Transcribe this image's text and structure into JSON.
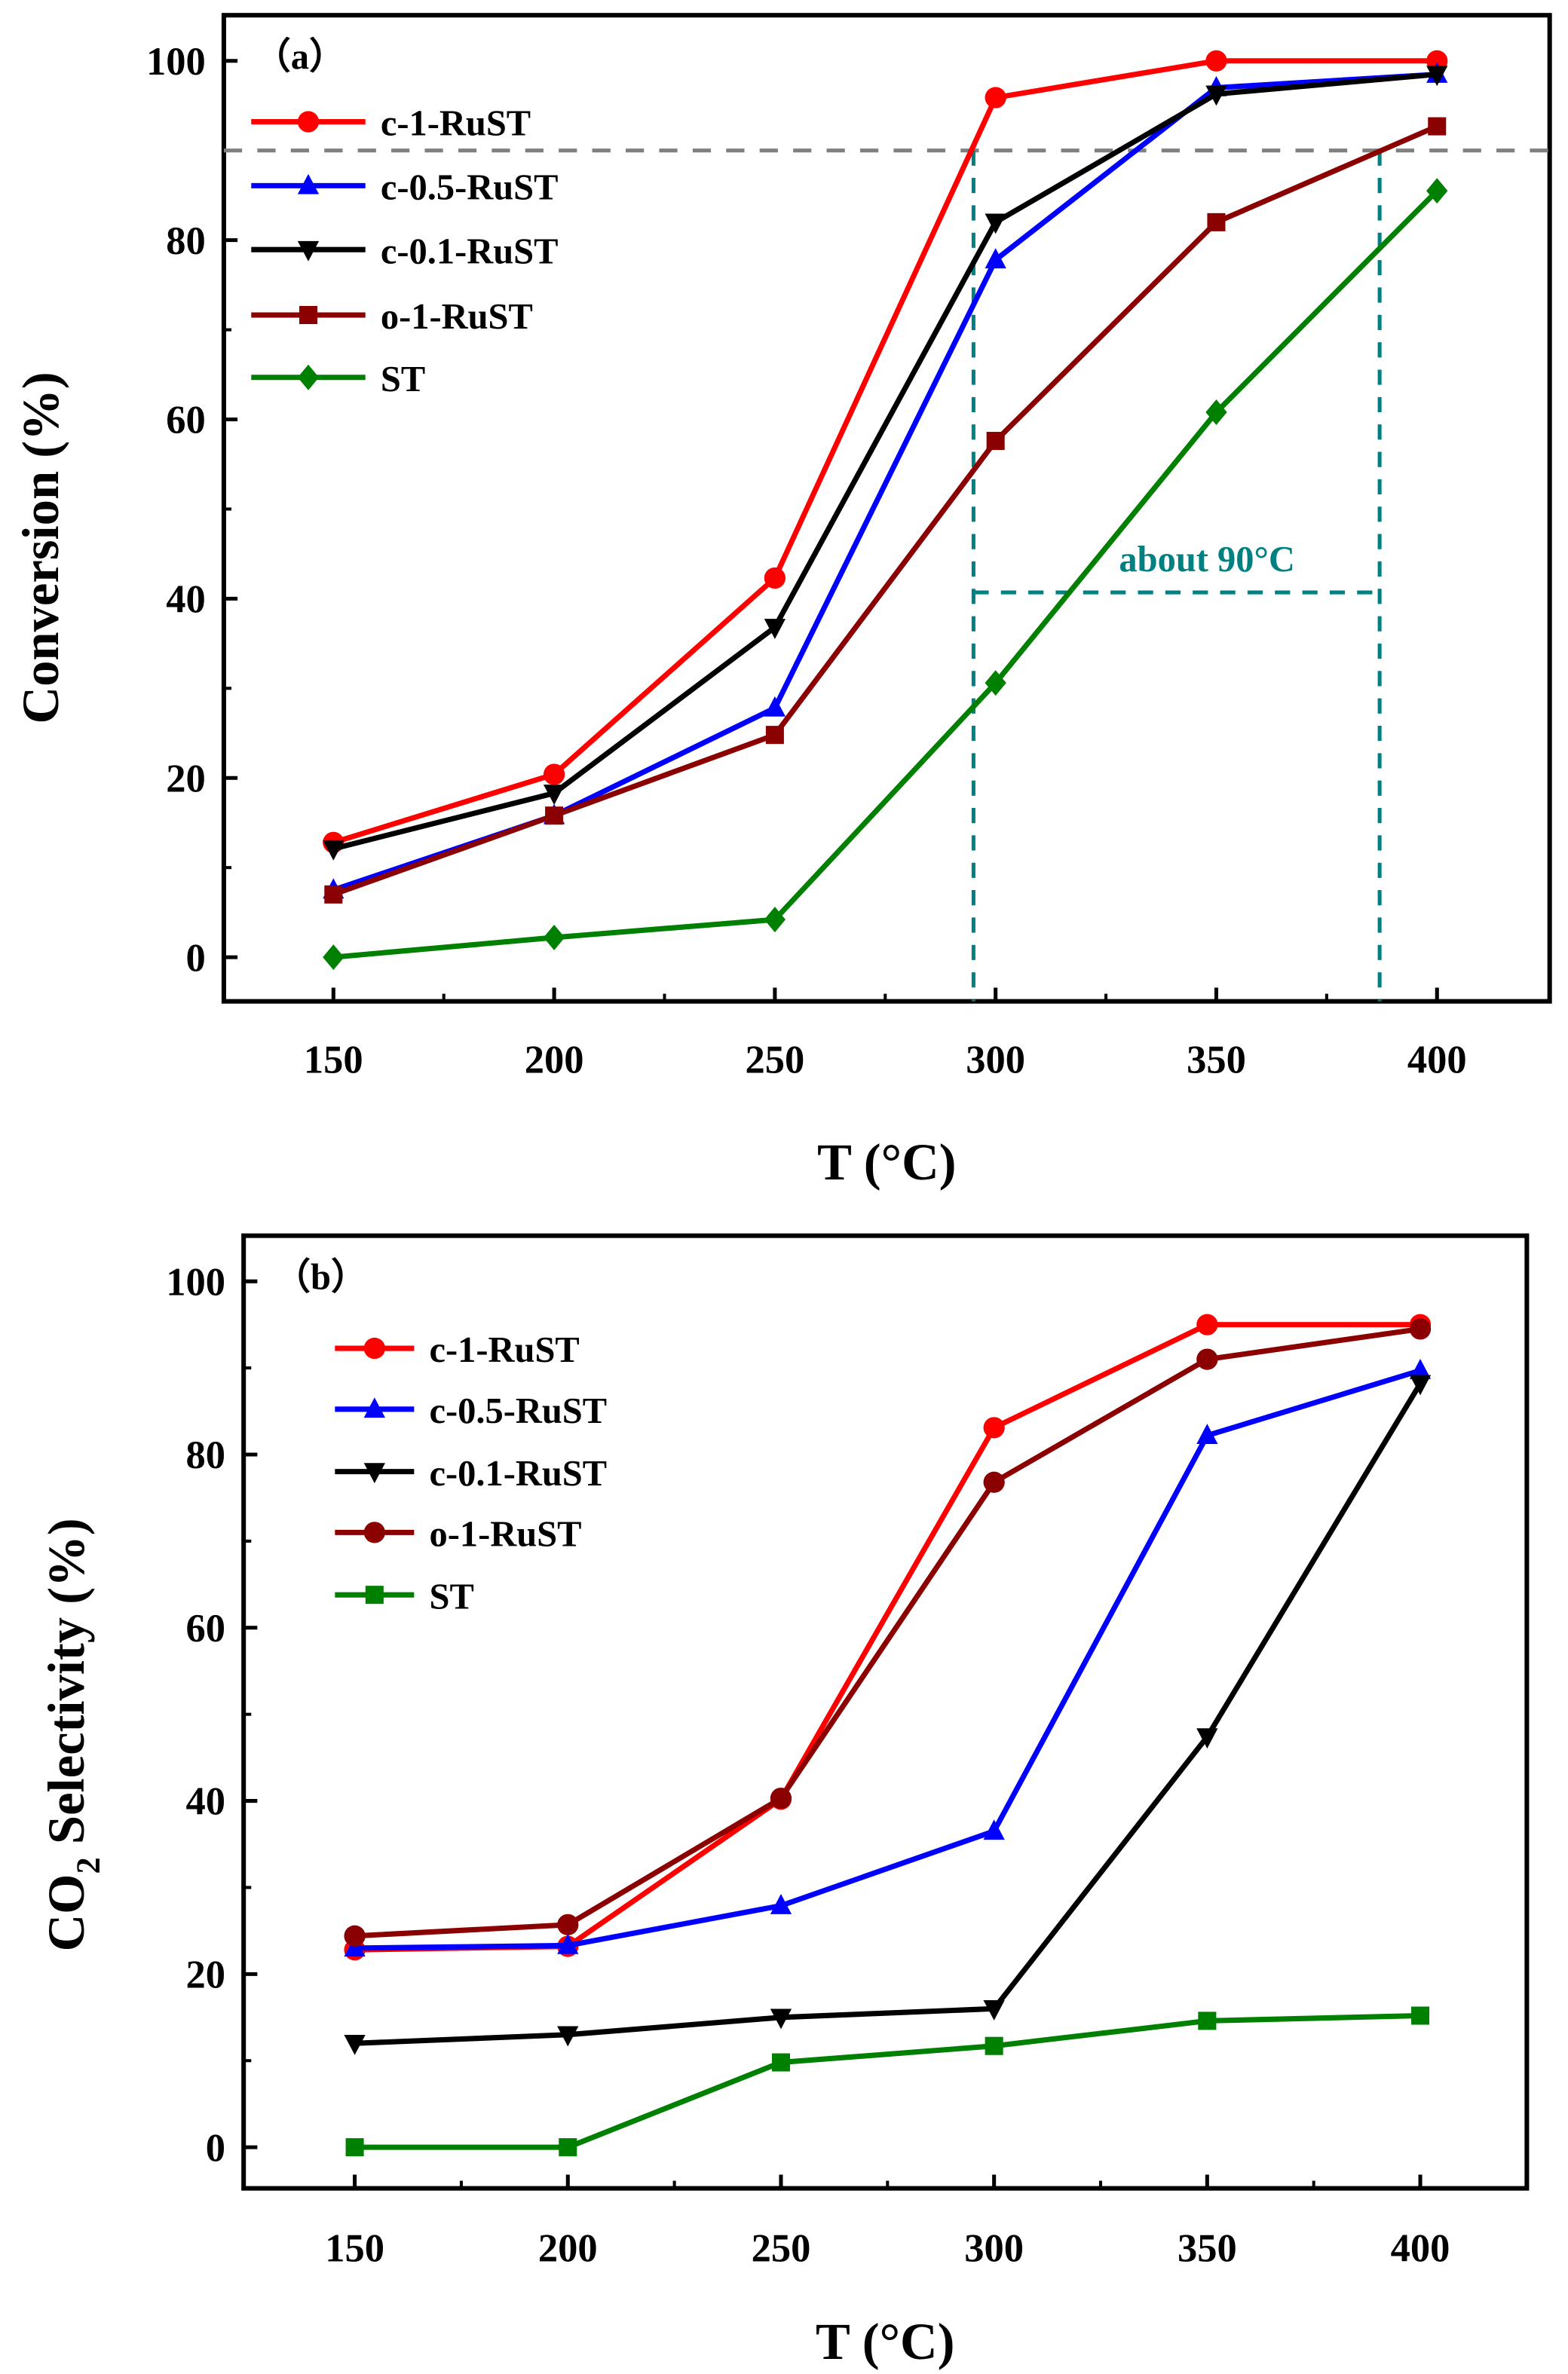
{
  "chart_data": [
    {
      "type": "line",
      "panel_label": "（a）",
      "xlabel": "T (°C)",
      "ylabel": "Conversion (%)",
      "xlim": [
        125,
        425
      ],
      "ylim": [
        -5,
        105
      ],
      "xticks": [
        150,
        200,
        250,
        300,
        350,
        400
      ],
      "yticks": [
        0,
        20,
        40,
        60,
        80,
        100
      ],
      "x": [
        150,
        200,
        250,
        300,
        350,
        400
      ],
      "legend_position": "top-left",
      "series": [
        {
          "name": "c-1-RuST",
          "color": "#ff0000",
          "marker": "circle",
          "values": [
            12.8,
            20.4,
            42.3,
            95.9,
            100,
            100
          ]
        },
        {
          "name": "c-0.5-RuST",
          "color": "#0000ff",
          "marker": "triangle-up",
          "values": [
            7.5,
            15.8,
            27.8,
            77.8,
            97,
            98.5
          ]
        },
        {
          "name": "c-0.1-RuST",
          "color": "#000000",
          "marker": "triangle-down",
          "values": [
            12.1,
            18.3,
            36.8,
            82,
            96.3,
            98.5
          ]
        },
        {
          "name": "o-1-RuST",
          "color": "#8b0000",
          "marker": "square",
          "values": [
            7,
            15.8,
            24.8,
            57.6,
            82,
            92.7
          ]
        },
        {
          "name": "ST",
          "color": "#008000",
          "marker": "diamond",
          "values": [
            0,
            2.2,
            4.2,
            30.6,
            60.8,
            85.5
          ]
        }
      ],
      "annotations": {
        "hline_90": {
          "y": 90,
          "color": "#808080"
        },
        "range": {
          "x_start": 295,
          "x_end": 387,
          "y": 40.7,
          "color": "#008080",
          "text": "about 90°C"
        }
      }
    },
    {
      "type": "line",
      "panel_label": "（b）",
      "xlabel": "T (°C)",
      "ylabel_main": "CO",
      "ylabel_sub": "2",
      "ylabel_rest": " Selectivity (%)",
      "xlim": [
        125,
        425
      ],
      "ylim": [
        -5,
        105
      ],
      "xticks": [
        150,
        200,
        250,
        300,
        350,
        400
      ],
      "yticks": [
        0,
        20,
        40,
        60,
        80,
        100
      ],
      "x": [
        150,
        200,
        250,
        300,
        350,
        400
      ],
      "legend_position": "top-left",
      "series": [
        {
          "name": "c-1-RuST",
          "color": "#ff0000",
          "marker": "circle",
          "values": [
            22.8,
            23.2,
            40.2,
            83.1,
            95,
            95
          ]
        },
        {
          "name": "c-0.5-RuST",
          "color": "#0000ff",
          "marker": "triangle-up",
          "values": [
            23,
            23.3,
            27.9,
            36.5,
            82.2,
            89.7
          ]
        },
        {
          "name": "c-0.1-RuST",
          "color": "#000000",
          "marker": "triangle-down",
          "values": [
            12,
            13,
            15,
            16,
            47.4,
            88.2
          ]
        },
        {
          "name": "o-1-RuST",
          "color": "#8b0000",
          "marker": "circle",
          "values": [
            24.4,
            25.7,
            40.3,
            76.8,
            91,
            94.5
          ]
        },
        {
          "name": "ST",
          "color": "#008000",
          "marker": "square",
          "values": [
            0,
            0,
            9.8,
            11.7,
            14.6,
            15.2
          ]
        }
      ]
    }
  ]
}
